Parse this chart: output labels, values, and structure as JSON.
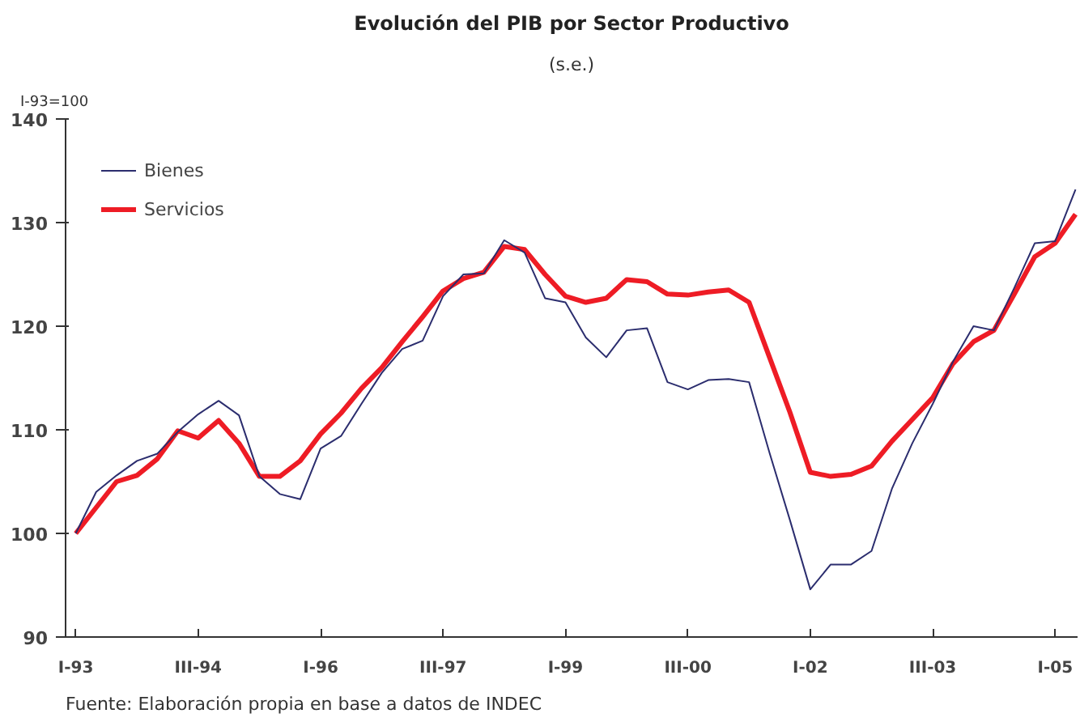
{
  "chart_data": {
    "type": "line",
    "title": "Evolución del PIB por Sector Productivo",
    "subtitle": "(s.e.)",
    "ylabel": "I-93=100",
    "categories": [
      "I-93",
      null,
      null,
      null,
      null,
      null,
      "III-94",
      null,
      null,
      null,
      null,
      null,
      "I-96",
      null,
      null,
      null,
      null,
      null,
      "III-97",
      null,
      null,
      null,
      null,
      null,
      "I-99",
      null,
      null,
      null,
      null,
      null,
      "III-00",
      null,
      null,
      null,
      null,
      null,
      "I-02",
      null,
      null,
      null,
      null,
      null,
      "III-03",
      null,
      null,
      null,
      null,
      null,
      "I-05",
      null
    ],
    "series": [
      {
        "name": "Bienes",
        "color": "#2b2d6e",
        "values": [
          100,
          104.0,
          105.6,
          107.0,
          107.7,
          109.8,
          111.5,
          112.8,
          111.4,
          105.5,
          103.8,
          103.3,
          108.2,
          109.4,
          112.5,
          115.5,
          117.8,
          118.6,
          122.9,
          125.0,
          125.1,
          128.3,
          127.1,
          122.7,
          122.3,
          118.9,
          117.0,
          119.6,
          119.8,
          114.6,
          113.9,
          114.8,
          114.9,
          114.6,
          107.8,
          101.3,
          94.6,
          97.0,
          97.0,
          98.3,
          104.3,
          108.7,
          112.5,
          116.6,
          120.0,
          119.6,
          123.7,
          128.0,
          128.2,
          133.2
        ]
      },
      {
        "name": "Servicios",
        "color": "#ee1c25",
        "values": [
          100,
          102.5,
          105.0,
          105.6,
          107.2,
          109.9,
          109.2,
          110.9,
          108.7,
          105.5,
          105.5,
          107.0,
          109.6,
          111.6,
          114.0,
          116.0,
          118.5,
          120.9,
          123.4,
          124.6,
          125.2,
          127.7,
          127.4,
          125.0,
          122.9,
          122.3,
          122.7,
          124.5,
          124.3,
          123.1,
          123.0,
          123.3,
          123.5,
          122.3,
          117.0,
          111.7,
          105.9,
          105.5,
          105.7,
          106.5,
          108.9,
          111.0,
          113.1,
          116.4,
          118.5,
          119.6,
          123.1,
          126.7,
          128.0,
          130.8
        ]
      }
    ],
    "ylim": [
      90,
      140
    ],
    "yticks": [
      90,
      100,
      110,
      120,
      130,
      140
    ],
    "grid": false,
    "legend": "top left",
    "marker": "none",
    "line_style": "solid",
    "annotations": [
      "Fuente: Elaboración propia en base a datos de INDEC"
    ]
  }
}
